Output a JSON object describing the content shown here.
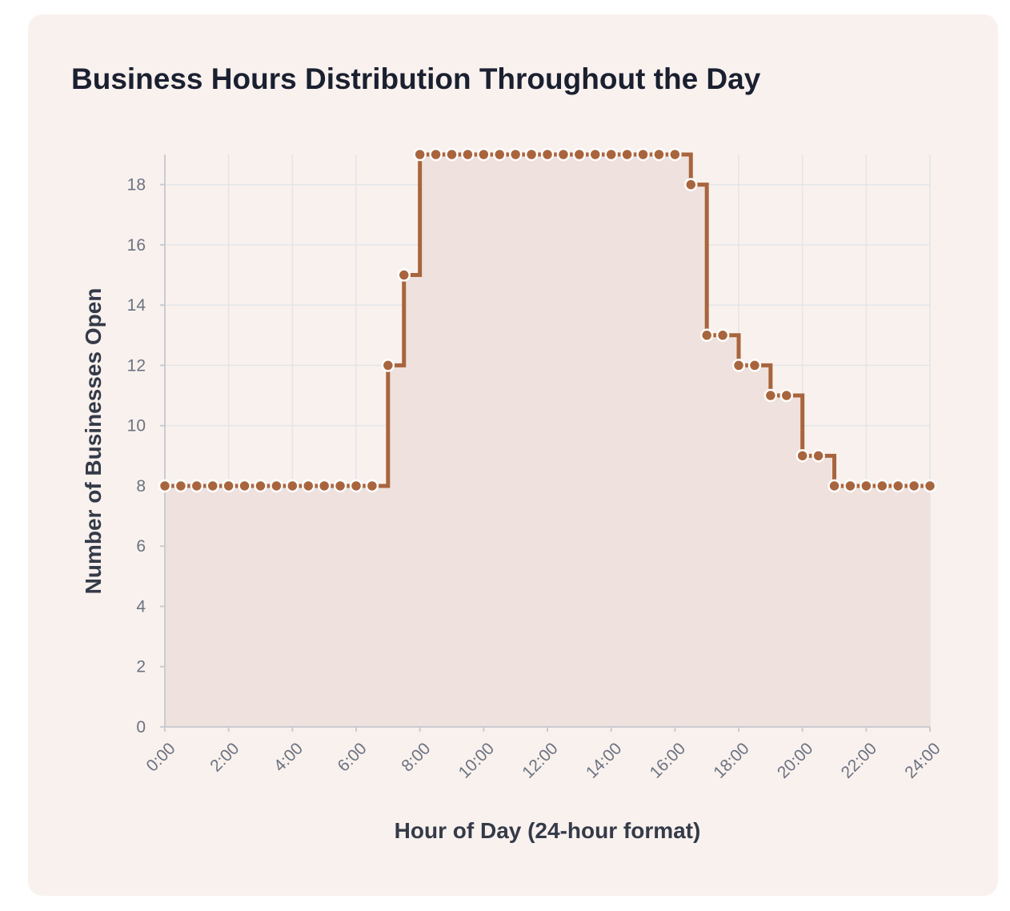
{
  "chart_data": {
    "type": "line",
    "title": "Business Hours Distribution Throughout the Day",
    "xlabel": "Hour of Day (24-hour format)",
    "ylabel": "Number of Businesses Open",
    "step": "after",
    "x_unit": "hours",
    "xlim": [
      0,
      24
    ],
    "ylim": [
      0,
      19
    ],
    "x_ticks": [
      0,
      2,
      4,
      6,
      8,
      10,
      12,
      14,
      16,
      18,
      20,
      22,
      24
    ],
    "x_tick_labels": [
      "0:00",
      "2:00",
      "4:00",
      "6:00",
      "8:00",
      "10:00",
      "12:00",
      "14:00",
      "16:00",
      "18:00",
      "20:00",
      "22:00",
      "24:00"
    ],
    "y_ticks": [
      0,
      2,
      4,
      6,
      8,
      10,
      12,
      14,
      16,
      18
    ],
    "y_tick_labels": [
      "0",
      "2",
      "4",
      "6",
      "8",
      "10",
      "12",
      "14",
      "16",
      "18"
    ],
    "grid": true,
    "legend": "none",
    "colors": {
      "line": "#a8653d",
      "fill": "#efe1dd",
      "marker_fill": "#a8653d",
      "marker_stroke": "#ffffff",
      "grid": "#e3e5e8",
      "axis": "#c9ccd1",
      "card_background": "#f9f1ee"
    },
    "series": [
      {
        "x": [
          0,
          0.5,
          1,
          1.5,
          2,
          2.5,
          3,
          3.5,
          4,
          4.5,
          5,
          5.5,
          6,
          6.5,
          7,
          7.5,
          8,
          8.5,
          9,
          9.5,
          10,
          10.5,
          11,
          11.5,
          12,
          12.5,
          13,
          13.5,
          14,
          14.5,
          15,
          15.5,
          16,
          16.5,
          17,
          17.5,
          18,
          18.5,
          19,
          19.5,
          20,
          20.5,
          21,
          21.5,
          22,
          22.5,
          23,
          23.5,
          24
        ],
        "y": [
          8,
          8,
          8,
          8,
          8,
          8,
          8,
          8,
          8,
          8,
          8,
          8,
          8,
          8,
          12,
          15,
          19,
          19,
          19,
          19,
          19,
          19,
          19,
          19,
          19,
          19,
          19,
          19,
          19,
          19,
          19,
          19,
          19,
          18,
          13,
          13,
          12,
          12,
          11,
          11,
          9,
          9,
          8,
          8,
          8,
          8,
          8,
          8,
          8
        ]
      }
    ]
  }
}
